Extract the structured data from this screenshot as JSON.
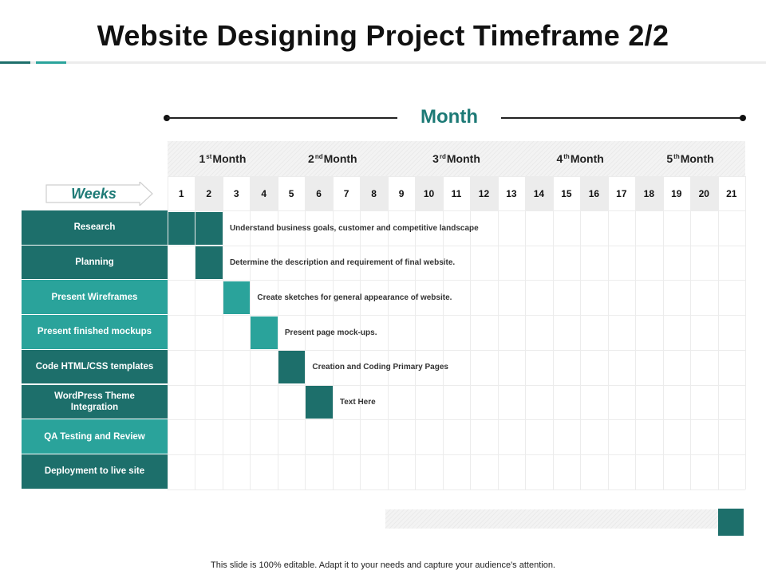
{
  "title": "Website Designing Project Timeframe 2/2",
  "month_label": "Month",
  "weeks_label": "Weeks",
  "colors": {
    "dark_teal": "#1d6f6b",
    "light_teal": "#2aa39b",
    "accent_text": "#1d7a76"
  },
  "months": [
    {
      "num": "1",
      "sup": "st",
      "rest": "Month"
    },
    {
      "num": "2",
      "sup": "nd",
      "rest": "Month"
    },
    {
      "num": "3",
      "sup": "rd",
      "rest": "Month"
    },
    {
      "num": "4",
      "sup": "th",
      "rest": "Month"
    },
    {
      "num": "5",
      "sup": "th",
      "rest": "Month"
    }
  ],
  "weeks": [
    "1",
    "2",
    "3",
    "4",
    "5",
    "6",
    "7",
    "8",
    "9",
    "10",
    "11",
    "12",
    "13",
    "14",
    "15",
    "16",
    "17",
    "18",
    "19",
    "20",
    "21"
  ],
  "tasks": [
    {
      "label": "Research",
      "style": "dark",
      "bar_weeks": [
        1,
        2
      ],
      "bar_style": "dark",
      "description": "Understand business goals, customer and competitive landscape"
    },
    {
      "label": "Planning",
      "style": "dark",
      "bar_weeks": [
        2
      ],
      "bar_style": "dark",
      "description": "Determine the description and requirement of final website."
    },
    {
      "label": "Present Wireframes",
      "style": "light",
      "bar_weeks": [
        3
      ],
      "bar_style": "light",
      "description": "Create sketches for general appearance of website."
    },
    {
      "label": "Present finished mockups",
      "style": "light",
      "bar_weeks": [
        4
      ],
      "bar_style": "light",
      "description": "Present page mock-ups."
    },
    {
      "label": "Code HTML/CSS templates",
      "style": "dark",
      "bar_weeks": [
        5
      ],
      "bar_style": "dark",
      "description": "Creation and Coding Primary Pages"
    },
    {
      "label": "WordPress Theme Integration",
      "style": "dark",
      "bar_weeks": [
        6
      ],
      "bar_style": "dark",
      "description": "Text Here"
    },
    {
      "label": "QA Testing and Review",
      "style": "light",
      "bar_weeks": [],
      "bar_style": "light",
      "description": ""
    },
    {
      "label": "Deployment to live site",
      "style": "dark",
      "bar_weeks": [],
      "bar_style": "dark",
      "description": ""
    }
  ],
  "footer": "This slide is 100% editable. Adapt it to your needs and capture your audience's attention."
}
